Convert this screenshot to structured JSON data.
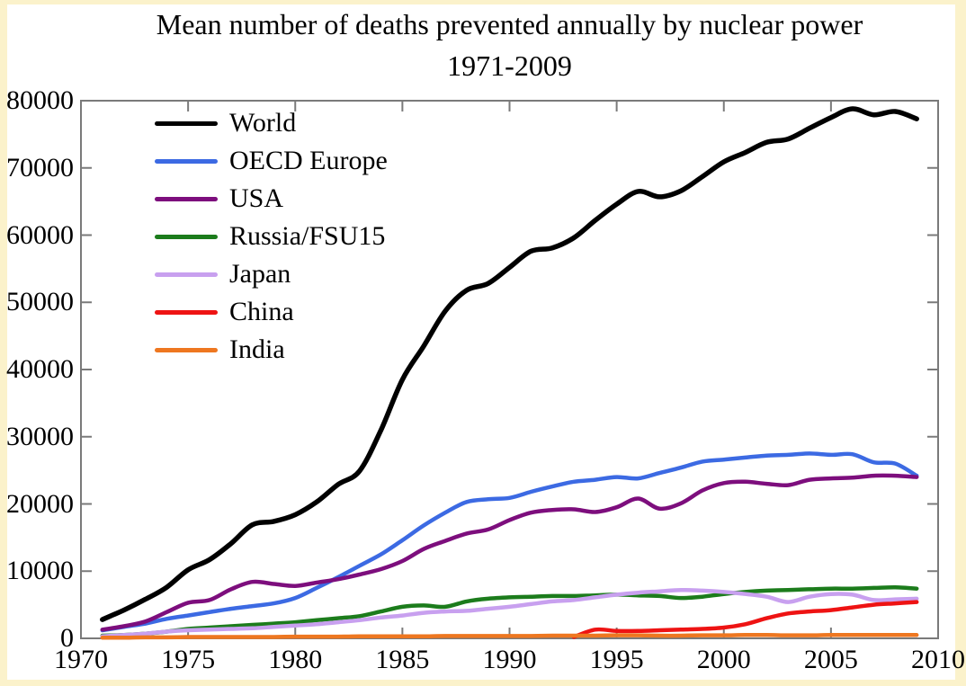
{
  "chart_data": {
    "type": "line",
    "title": "Mean number of deaths prevented annually by nuclear power",
    "subtitle": "1971-2009",
    "xlabel": "",
    "ylabel": "",
    "xlim": [
      1970,
      2010
    ],
    "ylim": [
      0,
      80000
    ],
    "x_ticks": [
      1970,
      1975,
      1980,
      1985,
      1990,
      1995,
      2000,
      2005,
      2010
    ],
    "y_ticks": [
      0,
      10000,
      20000,
      30000,
      40000,
      50000,
      60000,
      70000,
      80000
    ],
    "grid": false,
    "legend_position": "upper-left-inside",
    "axis_color": "#7A7A7A",
    "background_color": "#FFFFFF",
    "frame_color": "#FBF2CB",
    "years": [
      1971,
      1972,
      1973,
      1974,
      1975,
      1976,
      1977,
      1978,
      1979,
      1980,
      1981,
      1982,
      1983,
      1984,
      1985,
      1986,
      1987,
      1988,
      1989,
      1990,
      1991,
      1992,
      1993,
      1994,
      1995,
      1996,
      1997,
      1998,
      1999,
      2000,
      2001,
      2002,
      2003,
      2004,
      2005,
      2006,
      2007,
      2008,
      2009
    ],
    "series": [
      {
        "name": "World",
        "color": "#000000",
        "values": [
          2800,
          4200,
          5800,
          7600,
          10200,
          11700,
          14100,
          16900,
          17400,
          18400,
          20300,
          22900,
          24900,
          31000,
          38500,
          43500,
          48700,
          51800,
          52800,
          55200,
          57600,
          58100,
          59600,
          62200,
          64600,
          66500,
          65700,
          66600,
          68700,
          70900,
          72300,
          73800,
          74300,
          75900,
          77500,
          78800,
          77900,
          78400,
          77300
        ]
      },
      {
        "name": "OECD Europe",
        "color": "#3C6AE3",
        "values": [
          1200,
          1700,
          2200,
          2900,
          3400,
          3900,
          4400,
          4800,
          5200,
          6000,
          7500,
          9100,
          10800,
          12500,
          14600,
          16800,
          18700,
          20300,
          20700,
          20900,
          21800,
          22600,
          23300,
          23600,
          24000,
          23800,
          24600,
          25400,
          26300,
          26600,
          26900,
          27200,
          27300,
          27500,
          27300,
          27400,
          26200,
          26000,
          24200
        ]
      },
      {
        "name": "USA",
        "color": "#7D0E7D",
        "values": [
          1300,
          1800,
          2500,
          3900,
          5300,
          5700,
          7300,
          8400,
          8100,
          7800,
          8300,
          8800,
          9500,
          10300,
          11500,
          13300,
          14500,
          15600,
          16200,
          17600,
          18700,
          19100,
          19200,
          18800,
          19500,
          20800,
          19300,
          20100,
          22000,
          23100,
          23300,
          23000,
          22800,
          23600,
          23800,
          23900,
          24200,
          24200,
          24000
        ]
      },
      {
        "name": "Russia/FSU15",
        "color": "#1C7C1C",
        "values": [
          400,
          500,
          700,
          1000,
          1400,
          1600,
          1800,
          2000,
          2200,
          2400,
          2700,
          3000,
          3300,
          4000,
          4700,
          4900,
          4700,
          5500,
          5900,
          6100,
          6200,
          6300,
          6300,
          6400,
          6500,
          6400,
          6300,
          6000,
          6200,
          6600,
          6900,
          7100,
          7200,
          7300,
          7400,
          7400,
          7500,
          7600,
          7400
        ]
      },
      {
        "name": "Japan",
        "color": "#C8A0EF",
        "values": [
          300,
          500,
          700,
          1000,
          1200,
          1300,
          1400,
          1500,
          1700,
          1900,
          2100,
          2400,
          2700,
          3100,
          3400,
          3800,
          4000,
          4100,
          4400,
          4700,
          5100,
          5500,
          5700,
          6100,
          6500,
          6800,
          7000,
          7200,
          7100,
          6900,
          6600,
          6200,
          5400,
          6200,
          6600,
          6500,
          5700,
          5800,
          5900
        ]
      },
      {
        "name": "China",
        "color": "#EE1313",
        "values": [
          null,
          null,
          null,
          null,
          null,
          null,
          null,
          null,
          null,
          null,
          null,
          null,
          null,
          null,
          null,
          null,
          null,
          null,
          null,
          null,
          null,
          null,
          200,
          1300,
          1100,
          1100,
          1200,
          1300,
          1400,
          1600,
          2100,
          3000,
          3700,
          4000,
          4200,
          4600,
          5000,
          5200,
          5400
        ]
      },
      {
        "name": "India",
        "color": "#EE7720",
        "values": [
          100,
          100,
          150,
          150,
          200,
          200,
          200,
          200,
          200,
          250,
          250,
          250,
          300,
          300,
          300,
          300,
          350,
          350,
          350,
          350,
          350,
          400,
          400,
          400,
          450,
          450,
          400,
          400,
          450,
          450,
          500,
          500,
          450,
          450,
          500,
          500,
          500,
          500,
          500
        ]
      }
    ]
  }
}
